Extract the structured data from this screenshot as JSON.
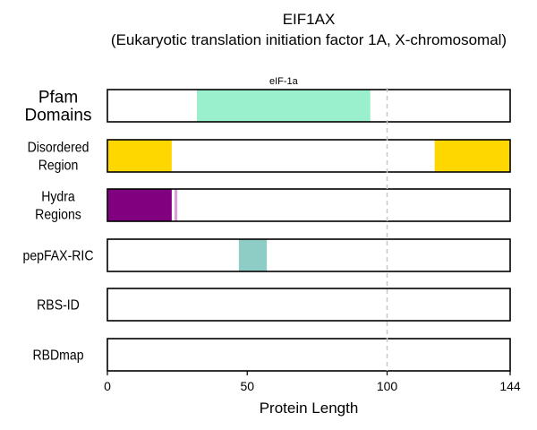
{
  "chart_data": {
    "type": "bar",
    "title": "EIF1AX",
    "subtitle": "(Eukaryotic translation initiation factor 1A, X-chromosomal)",
    "xlabel": "Protein Length",
    "xlim": [
      0,
      144
    ],
    "xticks": [
      "0",
      "50",
      "100",
      "144"
    ],
    "xtick_values": [
      0,
      50,
      100,
      144
    ],
    "reference_line": 100,
    "tracks": [
      {
        "label": [
          "Pfam",
          "Domains"
        ],
        "segments": [
          {
            "start": 32,
            "end": 94,
            "color": "#9af0cc",
            "label": "eIF-1a"
          }
        ]
      },
      {
        "label": [
          "Disordered",
          "Region"
        ],
        "segments": [
          {
            "start": 0,
            "end": 23,
            "color": "#ffd700"
          },
          {
            "start": 117,
            "end": 144,
            "color": "#ffd700"
          }
        ]
      },
      {
        "label": [
          "Hydra",
          "Regions"
        ],
        "segments": [
          {
            "start": 0,
            "end": 23,
            "color": "#800080"
          },
          {
            "start": 24,
            "end": 25,
            "color": "#dd9ddd"
          }
        ]
      },
      {
        "label": [
          "pepFAX-RIC"
        ],
        "segments": [
          {
            "start": 47,
            "end": 57,
            "color": "#8ecdc6"
          }
        ]
      },
      {
        "label": [
          "RBS-ID"
        ],
        "segments": []
      },
      {
        "label": [
          "RBDmap"
        ],
        "segments": []
      }
    ]
  }
}
